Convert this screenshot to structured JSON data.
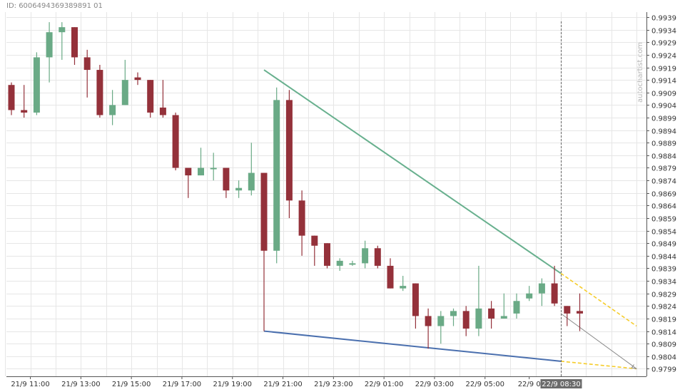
{
  "id_label": "ID: 6006494369389891 01",
  "watermark": "autochartist.com",
  "colors": {
    "bull": "#6aaa86",
    "bear": "#94313a",
    "grid": "#e6e6e6",
    "axis_text": "#333333",
    "upper_line": "#68b08e",
    "lower_line": "#4a6fae",
    "projection": "#f5cc2a",
    "forecast_arrow": "#888888",
    "cursor_label_bg": "#6b6b6b"
  },
  "chart_data": {
    "type": "candlestick",
    "title": "",
    "xlabel": "",
    "ylabel": "",
    "ylim": [
      0.9796,
      0.9941
    ],
    "y_ticks": [
      "0.9939",
      "0.9934",
      "0.9929",
      "0.9924",
      "0.9919",
      "0.9914",
      "0.9909",
      "0.9904",
      "0.9899",
      "0.9894",
      "0.9889",
      "0.9884",
      "0.9879",
      "0.9874",
      "0.9869",
      "0.9864",
      "0.9859",
      "0.9854",
      "0.9849",
      "0.9844",
      "0.9839",
      "0.9834",
      "0.9829",
      "0.9824",
      "0.9819",
      "0.9814",
      "0.9809",
      "0.9804",
      "0.9799"
    ],
    "x_ticks": [
      {
        "label": "21/9 11:00",
        "index": 1.5
      },
      {
        "label": "21/9 13:00",
        "index": 5.5
      },
      {
        "label": "21/9 15:00",
        "index": 9.5
      },
      {
        "label": "21/9 17:00",
        "index": 13.5
      },
      {
        "label": "21/9 19:00",
        "index": 17.5
      },
      {
        "label": "21/9 21:00",
        "index": 21.5
      },
      {
        "label": "21/9 23:00",
        "index": 25.5
      },
      {
        "label": "22/9 01:00",
        "index": 29.5
      },
      {
        "label": "22/9 03:00",
        "index": 33.5
      },
      {
        "label": "22/9 05:00",
        "index": 37.5
      },
      {
        "label": "22/9 0",
        "index": 41.0
      }
    ],
    "cursor": {
      "label": "22/9 08:30",
      "index": 43.5
    },
    "candles": [
      {
        "o": 0.9912,
        "h": 0.9913,
        "l": 0.99,
        "c": 0.9902
      },
      {
        "o": 0.9902,
        "h": 0.9912,
        "l": 0.9899,
        "c": 0.9901
      },
      {
        "o": 0.9901,
        "h": 0.9925,
        "l": 0.99,
        "c": 0.9923
      },
      {
        "o": 0.9923,
        "h": 0.9937,
        "l": 0.9913,
        "c": 0.9933
      },
      {
        "o": 0.9933,
        "h": 0.9937,
        "l": 0.9922,
        "c": 0.9935
      },
      {
        "o": 0.9935,
        "h": 0.9935,
        "l": 0.992,
        "c": 0.9923
      },
      {
        "o": 0.9923,
        "h": 0.9926,
        "l": 0.9907,
        "c": 0.9918
      },
      {
        "o": 0.9918,
        "h": 0.992,
        "l": 0.9899,
        "c": 0.99
      },
      {
        "o": 0.99,
        "h": 0.991,
        "l": 0.9896,
        "c": 0.9904
      },
      {
        "o": 0.9904,
        "h": 0.9922,
        "l": 0.9904,
        "c": 0.9914
      },
      {
        "o": 0.9915,
        "h": 0.9917,
        "l": 0.9912,
        "c": 0.9914
      },
      {
        "o": 0.9914,
        "h": 0.9914,
        "l": 0.9899,
        "c": 0.9901
      },
      {
        "o": 0.9903,
        "h": 0.9914,
        "l": 0.9899,
        "c": 0.99
      },
      {
        "o": 0.99,
        "h": 0.9901,
        "l": 0.9878,
        "c": 0.9879
      },
      {
        "o": 0.9879,
        "h": 0.9879,
        "l": 0.9867,
        "c": 0.9876
      },
      {
        "o": 0.9876,
        "h": 0.9887,
        "l": 0.9876,
        "c": 0.9879
      },
      {
        "o": 0.9879,
        "h": 0.9885,
        "l": 0.9874,
        "c": 0.9879
      },
      {
        "o": 0.9879,
        "h": 0.9879,
        "l": 0.9867,
        "c": 0.987
      },
      {
        "o": 0.987,
        "h": 0.9874,
        "l": 0.9867,
        "c": 0.9871
      },
      {
        "o": 0.987,
        "h": 0.9889,
        "l": 0.9868,
        "c": 0.9877
      },
      {
        "o": 0.9877,
        "h": 0.9877,
        "l": 0.9814,
        "c": 0.9846
      },
      {
        "o": 0.9846,
        "h": 0.9911,
        "l": 0.9841,
        "c": 0.9906
      },
      {
        "o": 0.9906,
        "h": 0.991,
        "l": 0.9859,
        "c": 0.9866
      },
      {
        "o": 0.9866,
        "h": 0.987,
        "l": 0.9844,
        "c": 0.9852
      },
      {
        "o": 0.9852,
        "h": 0.9852,
        "l": 0.984,
        "c": 0.9848
      },
      {
        "o": 0.9849,
        "h": 0.9849,
        "l": 0.9839,
        "c": 0.984
      },
      {
        "o": 0.984,
        "h": 0.9843,
        "l": 0.9838,
        "c": 0.9842
      },
      {
        "o": 0.9841,
        "h": 0.9842,
        "l": 0.984,
        "c": 0.9841
      },
      {
        "o": 0.9841,
        "h": 0.985,
        "l": 0.9839,
        "c": 0.9847
      },
      {
        "o": 0.9847,
        "h": 0.9848,
        "l": 0.9839,
        "c": 0.984
      },
      {
        "o": 0.984,
        "h": 0.9843,
        "l": 0.9831,
        "c": 0.9831
      },
      {
        "o": 0.9831,
        "h": 0.9836,
        "l": 0.983,
        "c": 0.9832
      },
      {
        "o": 0.9833,
        "h": 0.9833,
        "l": 0.9815,
        "c": 0.982
      },
      {
        "o": 0.982,
        "h": 0.9823,
        "l": 0.9807,
        "c": 0.9816
      },
      {
        "o": 0.9816,
        "h": 0.9822,
        "l": 0.9809,
        "c": 0.982
      },
      {
        "o": 0.982,
        "h": 0.9823,
        "l": 0.9816,
        "c": 0.9822
      },
      {
        "o": 0.9822,
        "h": 0.9824,
        "l": 0.9812,
        "c": 0.9815
      },
      {
        "o": 0.9815,
        "h": 0.984,
        "l": 0.9812,
        "c": 0.9823
      },
      {
        "o": 0.9823,
        "h": 0.9826,
        "l": 0.9815,
        "c": 0.9819
      },
      {
        "o": 0.9819,
        "h": 0.9829,
        "l": 0.9819,
        "c": 0.982
      },
      {
        "o": 0.9821,
        "h": 0.9829,
        "l": 0.9819,
        "c": 0.9826
      },
      {
        "o": 0.9827,
        "h": 0.9832,
        "l": 0.9826,
        "c": 0.9829
      },
      {
        "o": 0.9829,
        "h": 0.9835,
        "l": 0.9824,
        "c": 0.9833
      },
      {
        "o": 0.9833,
        "h": 0.984,
        "l": 0.9824,
        "c": 0.9825
      },
      {
        "o": 0.9824,
        "h": 0.9824,
        "l": 0.9816,
        "c": 0.9821
      },
      {
        "o": 0.9822,
        "h": 0.9829,
        "l": 0.9814,
        "c": 0.9821
      }
    ],
    "pattern": {
      "upper_line": {
        "from": {
          "index": 20,
          "value": 0.9918
        },
        "to": {
          "index": 43.5,
          "value": 0.9837
        }
      },
      "lower_line": {
        "from": {
          "index": 20,
          "value": 0.9814
        },
        "to": {
          "index": 43.5,
          "value": 0.9802
        }
      },
      "upper_projection": {
        "from": {
          "index": 43.5,
          "value": 0.9837
        },
        "to": {
          "index": 49.5,
          "value": 0.9816
        }
      },
      "lower_projection": {
        "from": {
          "index": 43.5,
          "value": 0.9802
        },
        "to": {
          "index": 49.5,
          "value": 0.9799
        }
      },
      "forecast_arrow": {
        "from": {
          "index": 43.5,
          "value": 0.9821
        },
        "to": {
          "index": 49.5,
          "value": 0.9799
        }
      }
    }
  }
}
